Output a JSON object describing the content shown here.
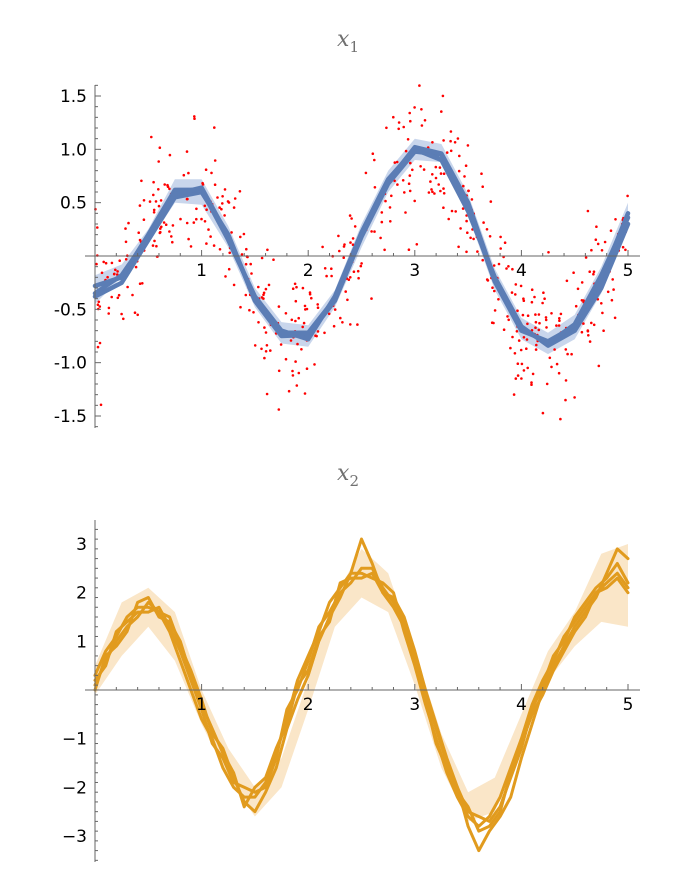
{
  "colors": {
    "x1_line": "#5b7db5",
    "x1_band": "#c9d6ec",
    "x1_points": "#ff0000",
    "x2_line": "#e19b1e",
    "x2_band": "#fae6c8",
    "axis": "#666666"
  },
  "chart_data": [
    {
      "type": "line",
      "title": "x",
      "title_subscript": "1",
      "xlim": [
        0,
        5
      ],
      "ylim": [
        -1.6,
        1.6
      ],
      "x_ticks": [
        "1",
        "2",
        "3",
        "4",
        "5"
      ],
      "y_ticks": [
        "1.5",
        "1.0",
        "0.5",
        "-0.5",
        "-1.0",
        "-1.5"
      ],
      "grid": false,
      "legend": "none",
      "band": {
        "x": [
          0,
          0.25,
          0.5,
          0.75,
          1.0,
          1.25,
          1.5,
          1.75,
          2.0,
          2.25,
          2.5,
          2.75,
          3.0,
          3.25,
          3.5,
          3.75,
          4.0,
          4.25,
          4.5,
          4.75,
          5.0
        ],
        "lower": [
          -0.45,
          -0.2,
          0.12,
          0.5,
          0.48,
          0.08,
          -0.48,
          -0.82,
          -0.85,
          -0.48,
          0.08,
          0.6,
          0.9,
          0.88,
          0.38,
          -0.32,
          -0.78,
          -0.92,
          -0.78,
          -0.35,
          0.3
        ],
        "upper": [
          -0.18,
          -0.08,
          0.25,
          0.72,
          0.72,
          0.28,
          -0.3,
          -0.62,
          -0.65,
          -0.32,
          0.3,
          0.8,
          1.1,
          1.05,
          0.58,
          -0.12,
          -0.58,
          -0.72,
          -0.55,
          -0.1,
          0.5
        ]
      },
      "series": [
        {
          "x": [
            0,
            0.25,
            0.5,
            0.75,
            1.0,
            1.25,
            1.5,
            1.75,
            2.0,
            2.25,
            2.5,
            2.75,
            3.0,
            3.25,
            3.5,
            3.75,
            4.0,
            4.25,
            4.5,
            4.75,
            5.0
          ],
          "values": [
            -0.38,
            -0.25,
            0.15,
            0.55,
            0.6,
            0.2,
            -0.42,
            -0.75,
            -0.74,
            -0.42,
            0.18,
            0.68,
            0.98,
            0.95,
            0.46,
            -0.24,
            -0.7,
            -0.8,
            -0.66,
            -0.22,
            0.4
          ]
        },
        {
          "x": [
            0,
            0.25,
            0.5,
            0.75,
            1.0,
            1.25,
            1.5,
            1.75,
            2.0,
            2.25,
            2.5,
            2.75,
            3.0,
            3.25,
            3.5,
            3.75,
            4.0,
            4.25,
            4.5,
            4.75,
            5.0
          ],
          "values": [
            -0.28,
            -0.2,
            0.2,
            0.62,
            0.62,
            0.15,
            -0.38,
            -0.7,
            -0.78,
            -0.38,
            0.22,
            0.72,
            1.0,
            0.9,
            0.42,
            -0.2,
            -0.66,
            -0.84,
            -0.7,
            -0.3,
            0.3
          ]
        },
        {
          "x": [
            0,
            0.25,
            0.5,
            0.75,
            1.0,
            1.25,
            1.5,
            1.75,
            2.0,
            2.25,
            2.5,
            2.75,
            3.0,
            3.25,
            3.5,
            3.75,
            4.0,
            4.25,
            4.5,
            4.75,
            5.0
          ],
          "values": [
            -0.35,
            -0.18,
            0.18,
            0.58,
            0.64,
            0.18,
            -0.4,
            -0.72,
            -0.72,
            -0.4,
            0.2,
            0.7,
            1.02,
            0.96,
            0.5,
            -0.22,
            -0.68,
            -0.82,
            -0.64,
            -0.18,
            0.36
          ]
        }
      ],
      "scatter": {
        "count": 560,
        "noise_sd": 0.3,
        "note_style": "red dots"
      }
    },
    {
      "type": "line",
      "title": "x",
      "title_subscript": "2",
      "xlim": [
        0,
        5
      ],
      "ylim": [
        -3.5,
        3.5
      ],
      "x_ticks": [
        "1",
        "2",
        "3",
        "4",
        "5"
      ],
      "y_ticks": [
        "3",
        "2",
        "1",
        "−1",
        "−2",
        "−3"
      ],
      "grid": false,
      "legend": "none",
      "band": {
        "x": [
          0,
          0.25,
          0.5,
          0.75,
          1.0,
          1.25,
          1.5,
          1.75,
          2.0,
          2.25,
          2.5,
          2.75,
          3.0,
          3.25,
          3.5,
          3.75,
          4.0,
          4.25,
          4.5,
          4.75,
          5.0
        ],
        "lower": [
          -0.1,
          0.7,
          1.3,
          0.6,
          -0.7,
          -1.8,
          -2.6,
          -2.0,
          -0.4,
          1.3,
          1.9,
          1.6,
          0.1,
          -1.6,
          -2.7,
          -2.5,
          -1.0,
          0.2,
          0.9,
          1.4,
          1.3
        ],
        "upper": [
          0.5,
          1.8,
          2.1,
          1.6,
          0.0,
          -1.2,
          -2.0,
          -1.4,
          0.2,
          1.9,
          2.9,
          2.4,
          0.8,
          -0.9,
          -2.1,
          -1.8,
          -0.5,
          0.8,
          1.6,
          2.8,
          3.0
        ]
      },
      "series": [
        {
          "x": [
            0,
            0.1,
            0.2,
            0.3,
            0.4,
            0.5,
            0.6,
            0.7,
            0.8,
            0.9,
            1.0,
            1.1,
            1.2,
            1.3,
            1.4,
            1.5,
            1.6,
            1.7,
            1.8,
            1.9,
            2.0,
            2.1,
            2.2,
            2.3,
            2.4,
            2.5,
            2.6,
            2.7,
            2.8,
            2.9,
            3.0,
            3.1,
            3.2,
            3.3,
            3.4,
            3.5,
            3.6,
            3.7,
            3.8,
            3.9,
            4.0,
            4.1,
            4.2,
            4.3,
            4.4,
            4.5,
            4.6,
            4.7,
            4.8,
            4.9,
            5.0
          ],
          "values": [
            0.1,
            0.6,
            1.0,
            1.3,
            1.5,
            1.8,
            1.6,
            1.5,
            0.9,
            0.4,
            -0.2,
            -0.9,
            -1.2,
            -1.8,
            -2.3,
            -2.5,
            -2.1,
            -1.6,
            -0.8,
            -0.2,
            0.3,
            1.0,
            1.5,
            1.9,
            2.4,
            3.1,
            2.6,
            2.0,
            1.9,
            1.5,
            0.8,
            0.0,
            -0.7,
            -1.4,
            -2.0,
            -2.8,
            -3.3,
            -2.9,
            -2.6,
            -2.2,
            -1.4,
            -0.7,
            0.0,
            0.5,
            0.9,
            1.3,
            1.6,
            1.9,
            2.4,
            2.9,
            2.7
          ]
        },
        {
          "x": [
            0,
            0.1,
            0.2,
            0.3,
            0.4,
            0.5,
            0.6,
            0.7,
            0.8,
            0.9,
            1.0,
            1.1,
            1.2,
            1.3,
            1.4,
            1.5,
            1.6,
            1.7,
            1.8,
            1.9,
            2.0,
            2.1,
            2.2,
            2.3,
            2.4,
            2.5,
            2.6,
            2.7,
            2.8,
            2.9,
            3.0,
            3.1,
            3.2,
            3.3,
            3.4,
            3.5,
            3.6,
            3.7,
            3.8,
            3.9,
            4.0,
            4.1,
            4.2,
            4.3,
            4.4,
            4.5,
            4.6,
            4.7,
            4.8,
            4.9,
            5.0
          ],
          "values": [
            0.3,
            0.8,
            1.1,
            1.5,
            1.7,
            1.7,
            1.6,
            1.2,
            0.6,
            0.0,
            -0.6,
            -1.0,
            -1.6,
            -2.0,
            -2.2,
            -2.2,
            -1.9,
            -1.3,
            -0.6,
            0.2,
            0.7,
            1.2,
            1.8,
            2.1,
            2.4,
            2.4,
            2.3,
            2.2,
            2.0,
            1.2,
            0.5,
            -0.3,
            -1.0,
            -1.7,
            -2.2,
            -2.6,
            -2.8,
            -2.6,
            -2.2,
            -1.6,
            -1.0,
            -0.3,
            0.2,
            0.6,
            1.1,
            1.4,
            1.7,
            2.0,
            2.2,
            2.4,
            2.1
          ]
        },
        {
          "x": [
            0,
            0.1,
            0.2,
            0.3,
            0.4,
            0.5,
            0.6,
            0.7,
            0.8,
            0.9,
            1.0,
            1.1,
            1.2,
            1.3,
            1.4,
            1.5,
            1.6,
            1.7,
            1.8,
            1.9,
            2.0,
            2.1,
            2.2,
            2.3,
            2.4,
            2.5,
            2.6,
            2.7,
            2.8,
            2.9,
            3.0,
            3.1,
            3.2,
            3.3,
            3.4,
            3.5,
            3.6,
            3.7,
            3.8,
            3.9,
            4.0,
            4.1,
            4.2,
            4.3,
            4.4,
            4.5,
            4.6,
            4.7,
            4.8,
            4.9,
            5.0
          ],
          "values": [
            0.2,
            0.5,
            1.2,
            1.4,
            1.6,
            1.6,
            1.7,
            1.3,
            0.8,
            0.2,
            -0.4,
            -1.1,
            -1.4,
            -1.9,
            -2.0,
            -2.1,
            -2.0,
            -1.4,
            -0.4,
            0.0,
            0.6,
            1.3,
            1.6,
            2.0,
            2.2,
            2.5,
            2.5,
            2.1,
            1.8,
            1.4,
            0.6,
            -0.2,
            -1.1,
            -1.6,
            -2.0,
            -2.5,
            -2.6,
            -2.7,
            -2.4,
            -1.8,
            -1.2,
            -0.4,
            0.1,
            0.7,
            1.0,
            1.5,
            1.8,
            2.1,
            2.3,
            2.6,
            2.2
          ]
        },
        {
          "x": [
            0,
            0.1,
            0.2,
            0.3,
            0.4,
            0.5,
            0.6,
            0.7,
            0.8,
            0.9,
            1.0,
            1.1,
            1.2,
            1.3,
            1.4,
            1.5,
            1.6,
            1.7,
            1.8,
            1.9,
            2.0,
            2.1,
            2.2,
            2.3,
            2.4,
            2.5,
            2.6,
            2.7,
            2.8,
            2.9,
            3.0,
            3.1,
            3.2,
            3.3,
            3.4,
            3.5,
            3.6,
            3.7,
            3.8,
            3.9,
            4.0,
            4.1,
            4.2,
            4.3,
            4.4,
            4.5,
            4.6,
            4.7,
            4.8,
            4.9,
            5.0
          ],
          "values": [
            0.0,
            0.7,
            0.9,
            1.2,
            1.8,
            1.9,
            1.5,
            1.4,
            1.0,
            0.3,
            -0.3,
            -0.8,
            -1.3,
            -1.7,
            -2.4,
            -2.0,
            -1.8,
            -1.2,
            -0.7,
            0.1,
            0.4,
            1.1,
            1.4,
            2.2,
            2.3,
            2.3,
            2.4,
            2.0,
            1.7,
            1.3,
            0.7,
            -0.1,
            -0.8,
            -1.5,
            -2.1,
            -2.4,
            -2.9,
            -2.8,
            -2.5,
            -1.7,
            -1.1,
            -0.5,
            -0.1,
            0.4,
            0.8,
            1.2,
            1.5,
            2.0,
            2.1,
            2.3,
            2.0
          ]
        }
      ]
    }
  ]
}
